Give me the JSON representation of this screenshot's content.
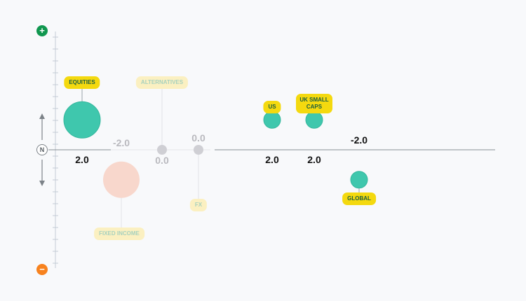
{
  "colors": {
    "highlight_bubble": "#3fc7ad",
    "faded_bubble": "#f7d3c6",
    "neutral_bubble": "#cfcfd4",
    "label_bg": "#f4d90f",
    "label_bg_faded": "#fbf0c1",
    "label_text": "#1a5d3f",
    "label_text_faded": "#a8d1be",
    "value_text": "#111111",
    "value_text_faded": "#b9b9be",
    "plus": "#10974f",
    "minus": "#f7821e",
    "axis": "#888e94",
    "scale": "#c3ccd6"
  },
  "scale": {
    "plus_symbol": "+",
    "minus_symbol": "−",
    "neutral_symbol": "N",
    "up_icon": "arrow-up-icon",
    "down_icon": "arrow-down-icon"
  },
  "chart_data": {
    "type": "scatter",
    "title": "",
    "ylabel": "",
    "xlabel": "",
    "ylim": [
      -8,
      8
    ],
    "grid": false,
    "points": [
      {
        "label": "EQUITIES",
        "value_label": "2.0",
        "y": 2.0,
        "size": "large",
        "state": "active"
      },
      {
        "label": "FIXED INCOME",
        "value_label": "-2.0",
        "y": -2.0,
        "size": "large",
        "state": "faded"
      },
      {
        "label": "ALTERNATIVES",
        "value_label": "0.0",
        "y": 0.0,
        "size": "small",
        "state": "neutral"
      },
      {
        "label": "FX",
        "value_label": "0.0",
        "y": 0.0,
        "size": "small",
        "state": "neutral"
      },
      {
        "label": "US",
        "value_label": "2.0",
        "y": 2.0,
        "size": "medium",
        "state": "active"
      },
      {
        "label": "UK SMALL CAPS",
        "value_label": "2.0",
        "y": 2.0,
        "size": "medium",
        "state": "active"
      },
      {
        "label": "GLOBAL",
        "value_label": "-2.0",
        "y": -2.0,
        "size": "medium",
        "state": "active"
      }
    ]
  }
}
